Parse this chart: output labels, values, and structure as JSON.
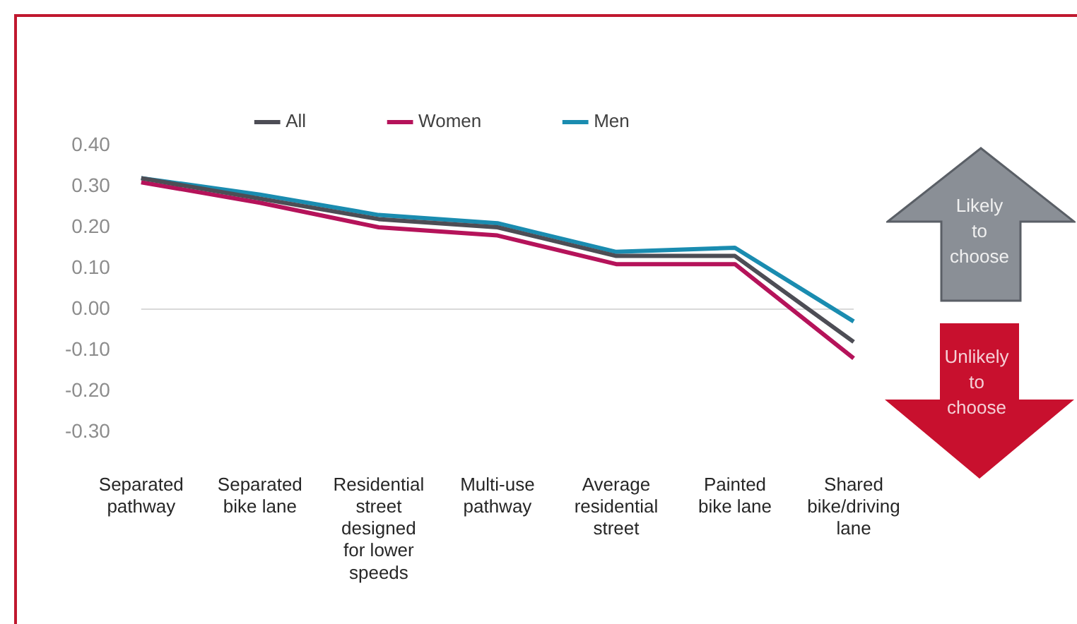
{
  "chart_data": {
    "type": "line",
    "categories": [
      "Separated pathway",
      "Separated bike lane",
      "Residential street designed for lower speeds",
      "Multi-use pathway",
      "Average residential street",
      "Painted bike lane",
      "Shared bike/driving lane"
    ],
    "series": [
      {
        "name": "All",
        "color": "#4d4d55",
        "values": [
          0.32,
          0.27,
          0.22,
          0.2,
          0.13,
          0.13,
          -0.08
        ]
      },
      {
        "name": "Women",
        "color": "#b5135a",
        "values": [
          0.31,
          0.26,
          0.2,
          0.18,
          0.11,
          0.11,
          -0.12
        ]
      },
      {
        "name": "Men",
        "color": "#1a8cb0",
        "values": [
          0.32,
          0.28,
          0.23,
          0.21,
          0.14,
          0.15,
          -0.03
        ]
      }
    ],
    "ylim": [
      -0.3,
      0.4
    ],
    "yticks": [
      {
        "value": -0.3,
        "label": "-0.30"
      },
      {
        "value": -0.2,
        "label": "-0.20"
      },
      {
        "value": -0.1,
        "label": "-0.10"
      },
      {
        "value": 0,
        "label": "0.00"
      },
      {
        "value": 0.1,
        "label": "0.10"
      },
      {
        "value": 0.2,
        "label": "0.20"
      },
      {
        "value": 0.3,
        "label": "0.30"
      },
      {
        "value": 0.4,
        "label": "0.40"
      }
    ],
    "ref_lines": [
      {
        "axis": "y",
        "value": 0,
        "color": "#d9d9d9"
      }
    ],
    "annotations": [
      "Likely to choose",
      "Unlikely to choose"
    ],
    "grid": false,
    "legend": "top",
    "marker": "none",
    "line_style": "solid"
  }
}
